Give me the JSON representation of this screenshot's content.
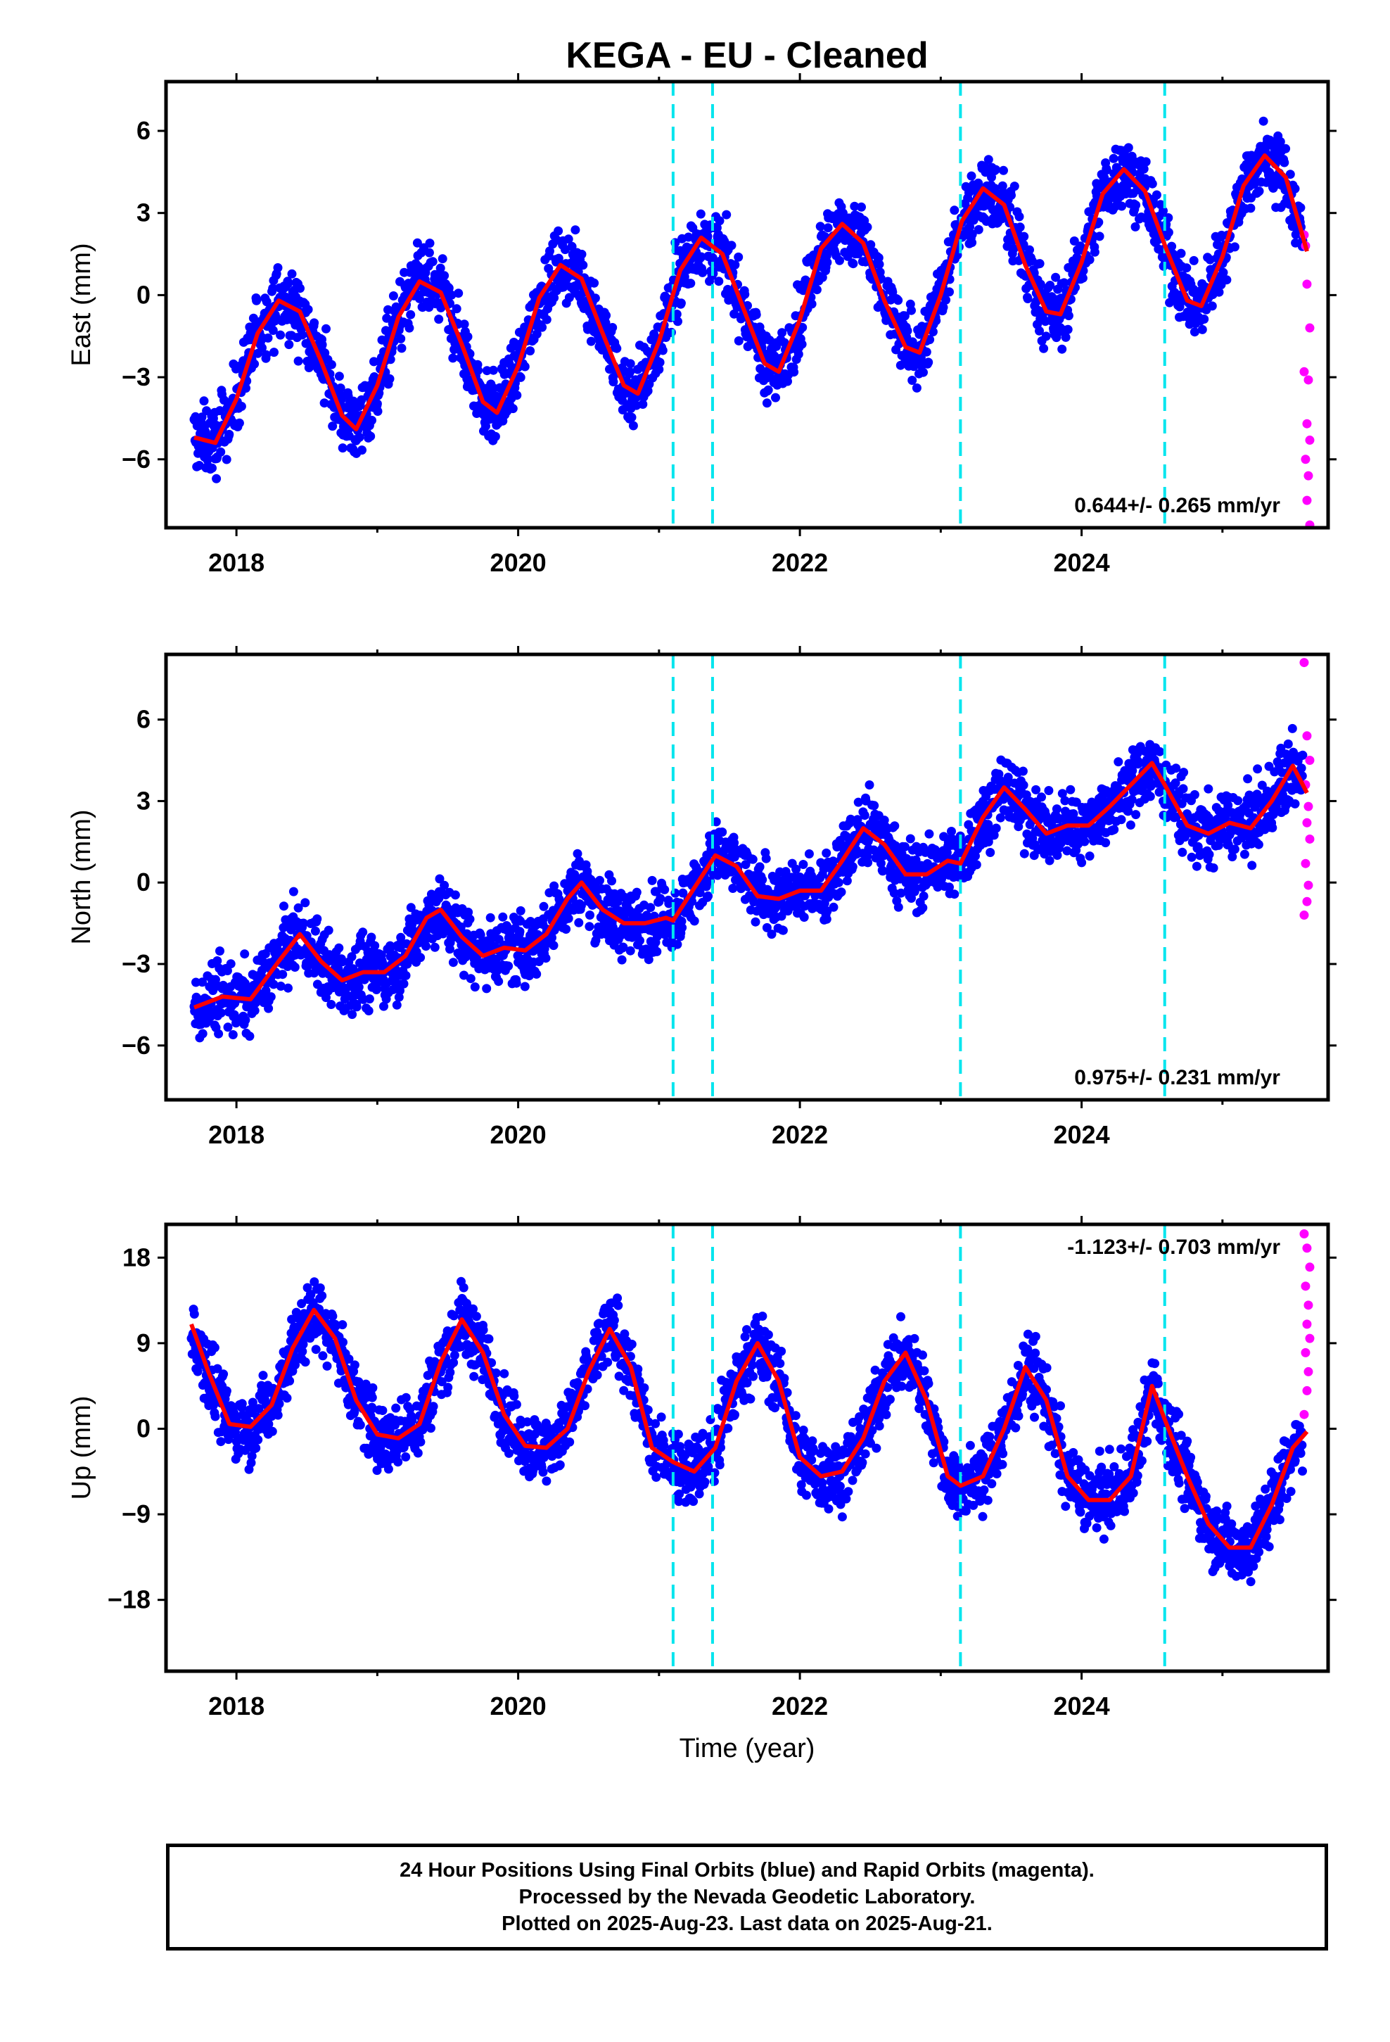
{
  "title": "KEGA  - EU - Cleaned",
  "xlabel": "Time (year)",
  "x_tick_labels": [
    "2018",
    "2020",
    "2022",
    "2024"
  ],
  "footer": {
    "line1": "24 Hour Positions Using Final Orbits (blue) and Rapid Orbits (magenta).",
    "line2": "Processed by the Nevada Geodetic Laboratory.",
    "line3": "Plotted on 2025-Aug-23. Last data on 2025-Aug-21."
  },
  "colors": {
    "final_orbits": "#0000ff",
    "rapid_orbits": "#ff00ff",
    "model": "#ff0000",
    "equipment_change": "#00e5ee"
  },
  "chart_data": [
    {
      "type": "scatter",
      "component": "east",
      "ylabel": "East (mm)",
      "xlim": [
        2017.5,
        2025.75
      ],
      "ylim": [
        -8.5,
        7.8
      ],
      "yticks": [
        -6,
        -3,
        0,
        3,
        6
      ],
      "y_tick_labels": [
        "-6",
        "-3",
        "0",
        "3",
        "6"
      ],
      "rate_text": "0.644+/- 0.265 mm/yr",
      "rate_position": "bottom-right",
      "grid": false,
      "offsets": [
        2021.1,
        2021.38,
        2023.14,
        2024.59
      ],
      "model_curve": {
        "x": [
          2017.7,
          2017.85,
          2018.0,
          2018.15,
          2018.3,
          2018.45,
          2018.6,
          2018.75,
          2018.85,
          2019.0,
          2019.15,
          2019.3,
          2019.45,
          2019.6,
          2019.75,
          2019.85,
          2020.0,
          2020.15,
          2020.3,
          2020.45,
          2020.6,
          2020.75,
          2020.85,
          2021.0,
          2021.15,
          2021.3,
          2021.45,
          2021.6,
          2021.75,
          2021.85,
          2022.0,
          2022.15,
          2022.3,
          2022.45,
          2022.6,
          2022.75,
          2022.85,
          2023.0,
          2023.15,
          2023.3,
          2023.45,
          2023.6,
          2023.75,
          2023.85,
          2024.0,
          2024.15,
          2024.3,
          2024.45,
          2024.6,
          2024.75,
          2024.85,
          2025.0,
          2025.15,
          2025.3,
          2025.45,
          2025.6
        ],
        "y": [
          -5.2,
          -5.4,
          -3.8,
          -1.4,
          -0.2,
          -0.6,
          -2.4,
          -4.4,
          -4.9,
          -3.3,
          -0.8,
          0.5,
          0.1,
          -1.8,
          -3.9,
          -4.3,
          -2.6,
          -0.1,
          1.1,
          0.6,
          -1.4,
          -3.3,
          -3.6,
          -1.7,
          0.9,
          2.1,
          1.5,
          -0.5,
          -2.5,
          -2.8,
          -0.9,
          1.7,
          2.6,
          1.9,
          -0.2,
          -1.9,
          -2.1,
          0.0,
          2.7,
          3.9,
          3.3,
          1.1,
          -0.6,
          -0.7,
          1.2,
          3.7,
          4.6,
          3.8,
          1.7,
          -0.2,
          -0.4,
          1.4,
          4.0,
          5.1,
          4.3,
          1.6
        ]
      },
      "rapid_points": {
        "x": [
          2025.58,
          2025.6,
          2025.62,
          2025.58,
          2025.61,
          2025.6,
          2025.62,
          2025.59,
          2025.61,
          2025.6,
          2025.62,
          2025.59
        ],
        "y": [
          2.2,
          0.4,
          -1.2,
          -2.8,
          -3.1,
          -4.7,
          -5.3,
          -6.0,
          -6.6,
          -7.5,
          -8.4,
          1.8
        ]
      },
      "final_points_approx": "dense daily scatter following model_curve, spread ~1.2 mm"
    },
    {
      "type": "scatter",
      "component": "north",
      "ylabel": "North (mm)",
      "xlim": [
        2017.5,
        2025.75
      ],
      "ylim": [
        -8.0,
        8.4
      ],
      "yticks": [
        -6,
        -3,
        0,
        3,
        6
      ],
      "y_tick_labels": [
        "-6",
        "-3",
        "0",
        "3",
        "6"
      ],
      "rate_text": "0.975+/- 0.231 mm/yr",
      "rate_position": "bottom-right",
      "grid": false,
      "offsets": [
        2021.1,
        2021.38,
        2023.14,
        2024.59
      ],
      "model_curve": {
        "x": [
          2017.7,
          2017.9,
          2018.1,
          2018.3,
          2018.45,
          2018.6,
          2018.75,
          2018.9,
          2019.05,
          2019.2,
          2019.35,
          2019.45,
          2019.6,
          2019.75,
          2019.9,
          2020.05,
          2020.2,
          2020.35,
          2020.45,
          2020.6,
          2020.75,
          2020.9,
          2021.05,
          2021.1,
          2021.25,
          2021.4,
          2021.55,
          2021.7,
          2021.85,
          2022.0,
          2022.15,
          2022.3,
          2022.45,
          2022.6,
          2022.75,
          2022.9,
          2023.05,
          2023.14,
          2023.3,
          2023.45,
          2023.6,
          2023.75,
          2023.9,
          2024.05,
          2024.2,
          2024.35,
          2024.5,
          2024.59,
          2024.75,
          2024.9,
          2025.05,
          2025.2,
          2025.35,
          2025.5,
          2025.6
        ],
        "y": [
          -4.6,
          -4.2,
          -4.3,
          -2.9,
          -1.9,
          -2.9,
          -3.6,
          -3.3,
          -3.3,
          -2.7,
          -1.3,
          -1.0,
          -2.0,
          -2.7,
          -2.4,
          -2.5,
          -1.9,
          -0.6,
          0.0,
          -1.0,
          -1.5,
          -1.5,
          -1.3,
          -1.4,
          -0.2,
          1.0,
          0.6,
          -0.5,
          -0.6,
          -0.3,
          -0.3,
          0.8,
          2.0,
          1.4,
          0.3,
          0.3,
          0.8,
          0.7,
          2.4,
          3.5,
          2.7,
          1.8,
          2.1,
          2.1,
          2.8,
          3.6,
          4.4,
          3.6,
          2.1,
          1.8,
          2.2,
          2.0,
          3.0,
          4.3,
          3.3
        ]
      },
      "rapid_points": {
        "x": [
          2025.58,
          2025.6,
          2025.62,
          2025.59,
          2025.61,
          2025.6,
          2025.62,
          2025.59,
          2025.61,
          2025.6,
          2025.58
        ],
        "y": [
          8.1,
          5.4,
          4.5,
          3.6,
          2.8,
          2.2,
          1.6,
          0.7,
          -0.1,
          -0.7,
          -1.2
        ]
      },
      "final_points_approx": "dense daily scatter following model_curve, spread ~1.2 mm"
    },
    {
      "type": "scatter",
      "component": "up",
      "ylabel": "Up (mm)",
      "xlim": [
        2017.5,
        2025.75
      ],
      "ylim": [
        -25.5,
        21.5
      ],
      "yticks": [
        -18,
        -9,
        0,
        9,
        18
      ],
      "y_tick_labels": [
        "-18",
        "-9",
        "0",
        "9",
        "18"
      ],
      "rate_text": "-1.123+/- 0.703 mm/yr",
      "rate_position": "top-right",
      "grid": false,
      "offsets": [
        2021.1,
        2021.38,
        2023.14,
        2024.59
      ],
      "model_curve": {
        "x": [
          2017.68,
          2017.8,
          2017.95,
          2018.1,
          2018.25,
          2018.4,
          2018.55,
          2018.7,
          2018.85,
          2019.0,
          2019.15,
          2019.3,
          2019.45,
          2019.6,
          2019.75,
          2019.9,
          2020.05,
          2020.2,
          2020.35,
          2020.5,
          2020.65,
          2020.8,
          2020.95,
          2021.1,
          2021.25,
          2021.4,
          2021.55,
          2021.7,
          2021.85,
          2022.0,
          2022.15,
          2022.3,
          2022.45,
          2022.6,
          2022.75,
          2022.9,
          2023.05,
          2023.14,
          2023.3,
          2023.45,
          2023.6,
          2023.75,
          2023.9,
          2024.05,
          2024.2,
          2024.35,
          2024.5,
          2024.59,
          2024.75,
          2024.9,
          2025.05,
          2025.2,
          2025.35,
          2025.5,
          2025.6
        ],
        "y": [
          11.0,
          6.0,
          0.5,
          0.2,
          2.5,
          8.5,
          12.5,
          9.5,
          3.0,
          -0.6,
          -1.0,
          0.5,
          7.0,
          11.5,
          8.0,
          1.5,
          -1.8,
          -2.0,
          0.0,
          6.0,
          10.5,
          6.5,
          -2.0,
          -3.5,
          -4.5,
          -2.0,
          5.0,
          9.0,
          5.0,
          -3.0,
          -5.0,
          -4.5,
          -1.0,
          5.0,
          8.0,
          3.0,
          -5.0,
          -6.0,
          -5.0,
          0.0,
          6.5,
          3.0,
          -5.0,
          -7.5,
          -7.5,
          -5.0,
          4.5,
          1.0,
          -5.0,
          -10.0,
          -12.5,
          -12.5,
          -8.0,
          -2.0,
          -0.3
        ]
      },
      "rapid_points": {
        "x": [
          2025.58,
          2025.6,
          2025.62,
          2025.59,
          2025.61,
          2025.6,
          2025.62,
          2025.59,
          2025.61,
          2025.6,
          2025.58
        ],
        "y": [
          20.5,
          19.0,
          17.0,
          15.0,
          13.0,
          11.0,
          9.5,
          8.0,
          6.0,
          4.0,
          1.5
        ]
      },
      "final_points_approx": "dense daily scatter following model_curve, spread ~3.5 mm"
    }
  ]
}
